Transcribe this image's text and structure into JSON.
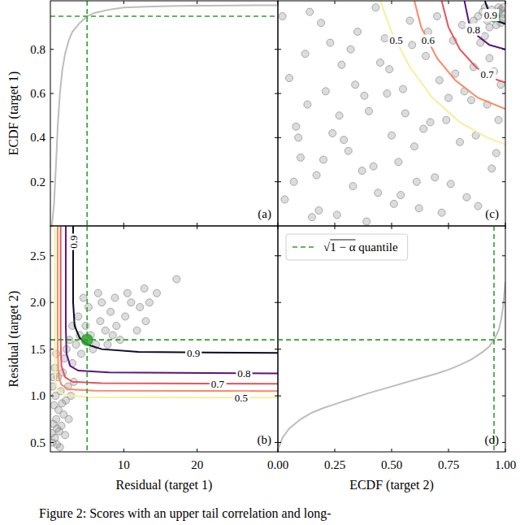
{
  "chart_data": [
    {
      "type": "line",
      "panel_label": "(a)",
      "ylabel": "ECDF (target 1)",
      "xlim": [
        0,
        31
      ],
      "ylim": [
        0,
        1.02
      ],
      "xticks": [
        10,
        20
      ],
      "yticks": [
        0.2,
        0.4,
        0.6,
        0.8
      ],
      "tick_labels": "y",
      "grid": false,
      "series": [
        {
          "color": "#bdbdbd",
          "line_style": "solid",
          "x": [
            0.2,
            0.5,
            0.8,
            1.0,
            1.3,
            1.6,
            2.0,
            2.5,
            3,
            4,
            5,
            6,
            8,
            10,
            13,
            16,
            20,
            25,
            28,
            31
          ],
          "values": [
            0,
            0.1,
            0.3,
            0.45,
            0.6,
            0.7,
            0.78,
            0.84,
            0.88,
            0.92,
            0.95,
            0.965,
            0.98,
            0.99,
            0.993,
            0.996,
            0.998,
            0.999,
            1.0,
            1.0
          ]
        }
      ],
      "reference_lines": {
        "x": 5.0,
        "y": 0.95,
        "color": "#2ca02c",
        "line_style": "dashed"
      }
    },
    {
      "type": "scatter",
      "panel_label": "(b)",
      "xlabel": "Residual (target 1)",
      "ylabel": "Residual (target 2)",
      "xlim": [
        0,
        31
      ],
      "ylim": [
        0.4,
        2.82
      ],
      "xticks": [
        10,
        20
      ],
      "yticks": [
        0.5,
        {
          "value": 1,
          "label": "1.0"
        },
        1.5,
        {
          "value": 2,
          "label": "2.0"
        },
        2.5
      ],
      "grid": false,
      "series": [
        {
          "color": "#8c8c8c",
          "marker": "circle",
          "x": [
            0.3,
            0.6,
            0.9,
            1.2,
            0.4,
            0.8,
            1.5,
            1.1,
            0.5,
            1.8,
            2.1,
            0.7,
            1.4,
            0.3,
            2.4,
            1.0,
            1.7,
            0.6,
            2.8,
            3.2,
            0.2,
            1.3,
            2.0,
            0.9,
            1.6,
            2.5,
            0.4,
            3.0,
            1.9,
            0.8,
            3.5,
            4.2,
            2.6,
            5.5,
            4.8,
            6.2,
            3.8,
            5.2,
            6.8,
            7.5,
            8.2,
            7.0,
            9.0,
            10.2,
            8.8,
            11.0,
            12.2,
            10.5,
            12.8,
            13.5,
            14.5,
            17.2,
            6.5,
            4.5,
            9.5,
            11.8,
            3.0,
            5.8,
            2.2,
            7.8,
            4.0,
            13.0,
            8.5
          ],
          "values": [
            0.5,
            0.55,
            0.48,
            0.62,
            0.7,
            0.75,
            0.68,
            0.85,
            0.9,
            0.8,
            0.95,
            1.0,
            1.05,
            1.1,
            1.1,
            1.2,
            1.25,
            1.3,
            1.0,
            1.15,
            0.6,
            0.45,
            0.58,
            0.65,
            0.92,
            0.75,
            1.2,
            1.35,
            1.4,
            1.45,
            1.55,
            1.45,
            1.6,
            1.65,
            1.75,
            1.55,
            1.85,
            1.95,
            1.8,
            1.7,
            1.9,
            2.0,
            1.75,
            1.85,
            2.05,
            2.0,
            1.95,
            2.1,
            2.15,
            2.0,
            2.1,
            2.25,
            2.1,
            2.05,
            1.6,
            1.7,
            1.75,
            1.5,
            1.5,
            1.55,
            1.65,
            1.8,
            1.65
          ]
        }
      ],
      "contours": [
        {
          "level": 0.5,
          "color": "#f7ef9e",
          "x": [
            0.6,
            0.6,
            0.7,
            1.0,
            2,
            5,
            31
          ],
          "values": [
            2.82,
            1.4,
            1.15,
            1.05,
            1.01,
            0.985,
            0.98
          ],
          "label_x": [
            26
          ],
          "label_y": [
            0.98
          ]
        },
        {
          "level": 0.6,
          "color": "#fc8961",
          "x": [
            1.0,
            1.0,
            1.1,
            1.5,
            2.5,
            6,
            31
          ],
          "values": [
            2.82,
            1.5,
            1.22,
            1.12,
            1.07,
            1.055,
            1.05
          ],
          "label_x": [],
          "label_y": []
        },
        {
          "level": 0.7,
          "color": "#e3555e",
          "x": [
            1.4,
            1.4,
            1.5,
            2.0,
            3.0,
            7,
            31
          ],
          "values": [
            2.82,
            1.6,
            1.32,
            1.2,
            1.15,
            1.135,
            1.13
          ],
          "label_x": [
            22.8
          ],
          "label_y": [
            1.13
          ]
        },
        {
          "level": 0.8,
          "color": "#5a167e",
          "x": [
            2.1,
            2.1,
            2.2,
            2.7,
            3.8,
            8,
            31
          ],
          "values": [
            2.82,
            1.75,
            1.45,
            1.32,
            1.27,
            1.25,
            1.24
          ],
          "label_x": [
            26.4
          ],
          "label_y": [
            1.24
          ]
        },
        {
          "level": 0.9,
          "color": "#0d0829",
          "x": [
            3.1,
            3.1,
            3.3,
            4.0,
            5.0,
            7,
            12,
            31
          ],
          "values": [
            2.82,
            2.0,
            1.75,
            1.62,
            1.55,
            1.5,
            1.47,
            1.46
          ],
          "label_x": [
            19.5,
            3.1
          ],
          "label_y": [
            1.46,
            2.65
          ]
        }
      ],
      "highlight": {
        "x": 5.0,
        "y": 1.6,
        "color": "#2ca02c"
      },
      "reference_lines": {
        "x": 5.0,
        "y": 1.6,
        "color": "#2ca02c",
        "line_style": "dashed"
      }
    },
    {
      "type": "scatter",
      "panel_label": "(c)",
      "xlim": [
        0,
        1
      ],
      "ylim": [
        0,
        1.02
      ],
      "xticks": [
        {
          "value": 0,
          "label": "0.00"
        },
        0.25,
        {
          "value": 0.5,
          "label": "0.50"
        },
        0.75,
        {
          "value": 1,
          "label": "1.00"
        }
      ],
      "yticks": [
        0.2,
        0.4,
        0.6,
        0.8
      ],
      "tick_labels": false,
      "grid": false,
      "series": [
        {
          "color": "#8c8c8c",
          "marker": "circle",
          "x": [
            0.03,
            0.08,
            0.12,
            0.17,
            0.21,
            0.26,
            0.31,
            0.35,
            0.4,
            0.44,
            0.49,
            0.53,
            0.58,
            0.62,
            0.67,
            0.71,
            0.76,
            0.8,
            0.85,
            0.89,
            0.94,
            0.98,
            0.05,
            0.1,
            0.15,
            0.19,
            0.24,
            0.28,
            0.33,
            0.38,
            0.42,
            0.47,
            0.51,
            0.56,
            0.6,
            0.65,
            0.69,
            0.74,
            0.78,
            0.83,
            0.87,
            0.92,
            0.96,
            0.02,
            0.07,
            0.13,
            0.18,
            0.23,
            0.29,
            0.34,
            0.39,
            0.45,
            0.5,
            0.55,
            0.61,
            0.66,
            0.72,
            0.77,
            0.82,
            0.88,
            0.93,
            0.97,
            0.09,
            0.14,
            0.2,
            0.27,
            0.32,
            0.37,
            0.43,
            0.48,
            0.54,
            0.59,
            0.64,
            0.7,
            0.75,
            0.81,
            0.86,
            0.91,
            0.95,
            0.9,
            0.92,
            0.94,
            0.96,
            0.97,
            0.98,
            0.99,
            0.93,
            0.95,
            0.97,
            0.99,
            0.88,
            0.91,
            0.96,
            0.98,
            0.86,
            0.94,
            0.99
          ],
          "values": [
            0.12,
            0.45,
            0.78,
            0.23,
            0.61,
            0.05,
            0.34,
            0.88,
            0.52,
            0.15,
            0.71,
            0.29,
            0.93,
            0.08,
            0.47,
            0.66,
            0.19,
            0.38,
            0.57,
            0.83,
            0.26,
            0.64,
            0.67,
            0.31,
            0.04,
            0.92,
            0.42,
            0.73,
            0.18,
            0.59,
            0.27,
            0.85,
            0.1,
            0.51,
            0.36,
            0.77,
            0.22,
            0.48,
            0.69,
            0.13,
            0.41,
            0.55,
            0.33,
            0.95,
            0.2,
            0.55,
            0.07,
            0.83,
            0.39,
            0.64,
            0.02,
            0.74,
            0.41,
            0.62,
            0.2,
            0.88,
            0.06,
            0.84,
            0.61,
            0.09,
            0.76,
            0.48,
            0.4,
            0.97,
            0.3,
            0.5,
            0.8,
            0.25,
            0.99,
            0.6,
            0.14,
            0.82,
            0.44,
            0.95,
            0.58,
            0.91,
            0.72,
            0.86,
            0.7,
            0.97,
            0.93,
            0.98,
            0.95,
            0.99,
            0.92,
            0.96,
            0.9,
            0.94,
            0.97,
            0.99,
            0.95,
            0.99,
            0.91,
            0.98,
            0.93,
            0.96,
            0.94
          ]
        }
      ],
      "contours": [
        {
          "level": 0.5,
          "color": "#f7ef9e",
          "x": [
            0.45,
            0.5,
            0.58,
            0.68,
            0.8,
            0.92,
            1.0
          ],
          "values": [
            1.02,
            0.88,
            0.72,
            0.58,
            0.47,
            0.4,
            0.37
          ],
          "label_x": [
            0.52
          ],
          "label_y": [
            0.84
          ]
        },
        {
          "level": 0.6,
          "color": "#fc8961",
          "x": [
            0.6,
            0.63,
            0.7,
            0.78,
            0.88,
            1.0
          ],
          "values": [
            1.02,
            0.9,
            0.76,
            0.66,
            0.58,
            0.53
          ],
          "label_x": [
            0.66
          ],
          "label_y": [
            0.84
          ]
        },
        {
          "level": 0.7,
          "color": "#e3555e",
          "x": [
            0.72,
            0.75,
            0.8,
            0.87,
            0.94,
            1.0
          ],
          "values": [
            1.02,
            0.9,
            0.8,
            0.72,
            0.67,
            0.65
          ],
          "label_x": [
            0.92
          ],
          "label_y": [
            0.685
          ]
        },
        {
          "level": 0.8,
          "color": "#5a167e",
          "x": [
            0.82,
            0.84,
            0.88,
            0.93,
            1.0
          ],
          "values": [
            1.02,
            0.92,
            0.86,
            0.82,
            0.8
          ],
          "label_x": [
            0.86
          ],
          "label_y": [
            0.89
          ]
        },
        {
          "level": 0.9,
          "color": "#0d0829",
          "x": [
            0.91,
            0.93,
            0.96,
            1.0
          ],
          "values": [
            1.02,
            0.96,
            0.93,
            0.915
          ],
          "label_x": [
            0.935
          ],
          "label_y": [
            0.955
          ]
        }
      ],
      "highlight": {
        "x": 0.95,
        "y": 0.95,
        "color": "#2ca02c"
      }
    },
    {
      "type": "line",
      "panel_label": "(d)",
      "xlabel": "ECDF (target 2)",
      "xlim": [
        0,
        1
      ],
      "ylim": [
        0.4,
        2.82
      ],
      "xticks": [
        {
          "value": 0,
          "label": "0.00"
        },
        0.25,
        {
          "value": 0.5,
          "label": "0.50"
        },
        0.75,
        {
          "value": 1,
          "label": "1.00"
        }
      ],
      "yticks": [
        0.5,
        {
          "value": 1,
          "label": "1.0"
        },
        1.5,
        {
          "value": 2,
          "label": "2.0"
        },
        2.5
      ],
      "tick_labels": "x",
      "grid": false,
      "legend": "upper left",
      "series": [
        {
          "color": "#bdbdbd",
          "line_style": "solid",
          "x": [
            0,
            0.02,
            0.05,
            0.1,
            0.15,
            0.2,
            0.25,
            0.3,
            0.4,
            0.5,
            0.6,
            0.7,
            0.75,
            0.8,
            0.85,
            0.9,
            0.93,
            0.95,
            0.97,
            0.98,
            0.99,
            1.0
          ],
          "values": [
            0.42,
            0.55,
            0.65,
            0.75,
            0.82,
            0.87,
            0.91,
            0.95,
            1.03,
            1.1,
            1.17,
            1.24,
            1.28,
            1.33,
            1.39,
            1.47,
            1.53,
            1.6,
            1.7,
            1.8,
            1.95,
            2.22
          ]
        }
      ],
      "reference_lines": {
        "name": "√1 − α quantile",
        "x": 0.95,
        "y": 1.6,
        "color": "#2ca02c",
        "line_style": "dashed"
      }
    }
  ],
  "caption": "Figure 2: Scores with an upper tail correlation and long-"
}
